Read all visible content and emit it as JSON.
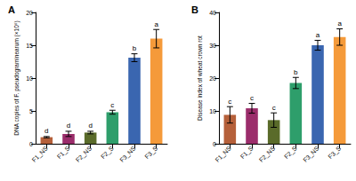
{
  "chart_data": [
    {
      "type": "bar",
      "title": "A",
      "y_label": "DNA copies of F. pseudograminearum (×10⁶)",
      "categories": [
        "F1_NS",
        "F1_S",
        "F2_NS",
        "F2_S",
        "F3_NS",
        "F3_S"
      ],
      "values": [
        1.0,
        1.5,
        1.7,
        4.8,
        13.1,
        16.0
      ],
      "errors": [
        0.1,
        0.4,
        0.2,
        0.3,
        0.6,
        1.4
      ],
      "annotations": [
        "d",
        "d",
        "d",
        "c",
        "b",
        "a"
      ],
      "colors": [
        "#b5603a",
        "#9b2d6b",
        "#5a6b2a",
        "#2e9e6b",
        "#3a66b0",
        "#f59a3a"
      ],
      "ylim": [
        0,
        20
      ],
      "yticks": [
        0,
        5,
        10,
        15,
        20
      ],
      "grid": false
    },
    {
      "type": "bar",
      "title": "B",
      "y_label": "Disease index of wheat crown rot",
      "categories": [
        "F1_NS",
        "F1_S",
        "F2_NS",
        "F2_S",
        "F3_NS",
        "F3_S"
      ],
      "values": [
        8.8,
        10.8,
        7.2,
        18.5,
        30.0,
        32.5
      ],
      "errors": [
        2.5,
        1.5,
        2.2,
        1.7,
        1.5,
        2.5
      ],
      "annotations": [
        "c",
        "c",
        "c",
        "b",
        "a",
        "a"
      ],
      "colors": [
        "#b5603a",
        "#9b2d6b",
        "#5a6b2a",
        "#2e9e6b",
        "#3a66b0",
        "#f59a3a"
      ],
      "ylim": [
        0,
        40
      ],
      "yticks": [
        0,
        10,
        20,
        30,
        40
      ],
      "grid": false
    }
  ]
}
